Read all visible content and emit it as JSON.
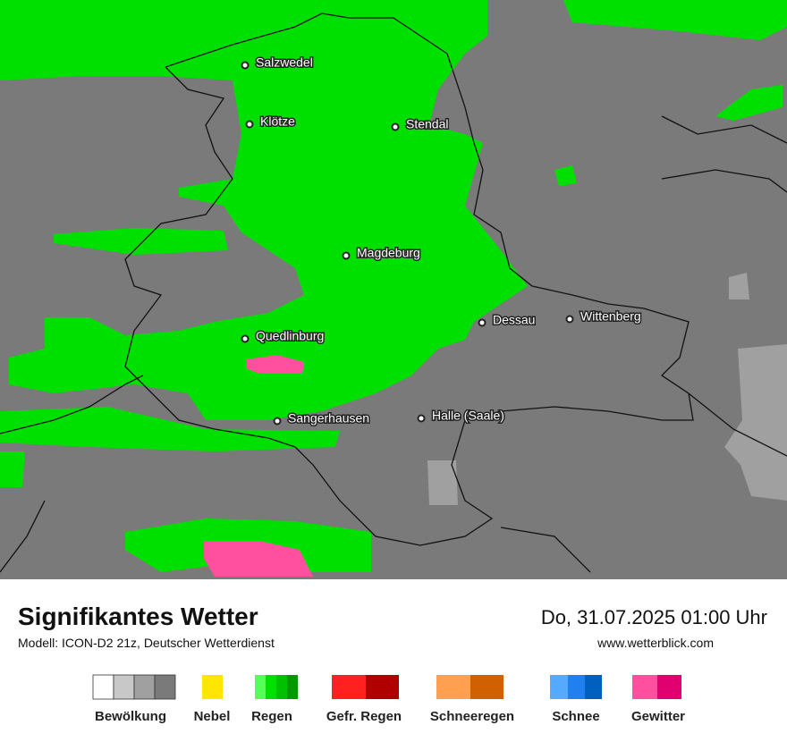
{
  "map": {
    "cities": [
      {
        "label": "Salzwedel"
      },
      {
        "label": "Klötze"
      },
      {
        "label": "Stendal"
      },
      {
        "label": "Magdeburg"
      },
      {
        "label": "Quedlinburg"
      },
      {
        "label": "Dessau"
      },
      {
        "label": "Wittenberg"
      },
      {
        "label": "Sangerhausen"
      },
      {
        "label": "Halle (Saale)"
      }
    ]
  },
  "header": {
    "title": "Signifikantes Wetter",
    "model": "Modell: ICON-D2 21z, Deutscher Wetterdienst",
    "datetime": "Do, 31.07.2025 01:00 Uhr",
    "website": "www.wetterblick.com"
  },
  "legend": {
    "items": [
      "Bewölkung",
      "Nebel",
      "Regen",
      "Gefr. Regen",
      "Schneeregen",
      "Schnee",
      "Gewitter"
    ]
  }
}
